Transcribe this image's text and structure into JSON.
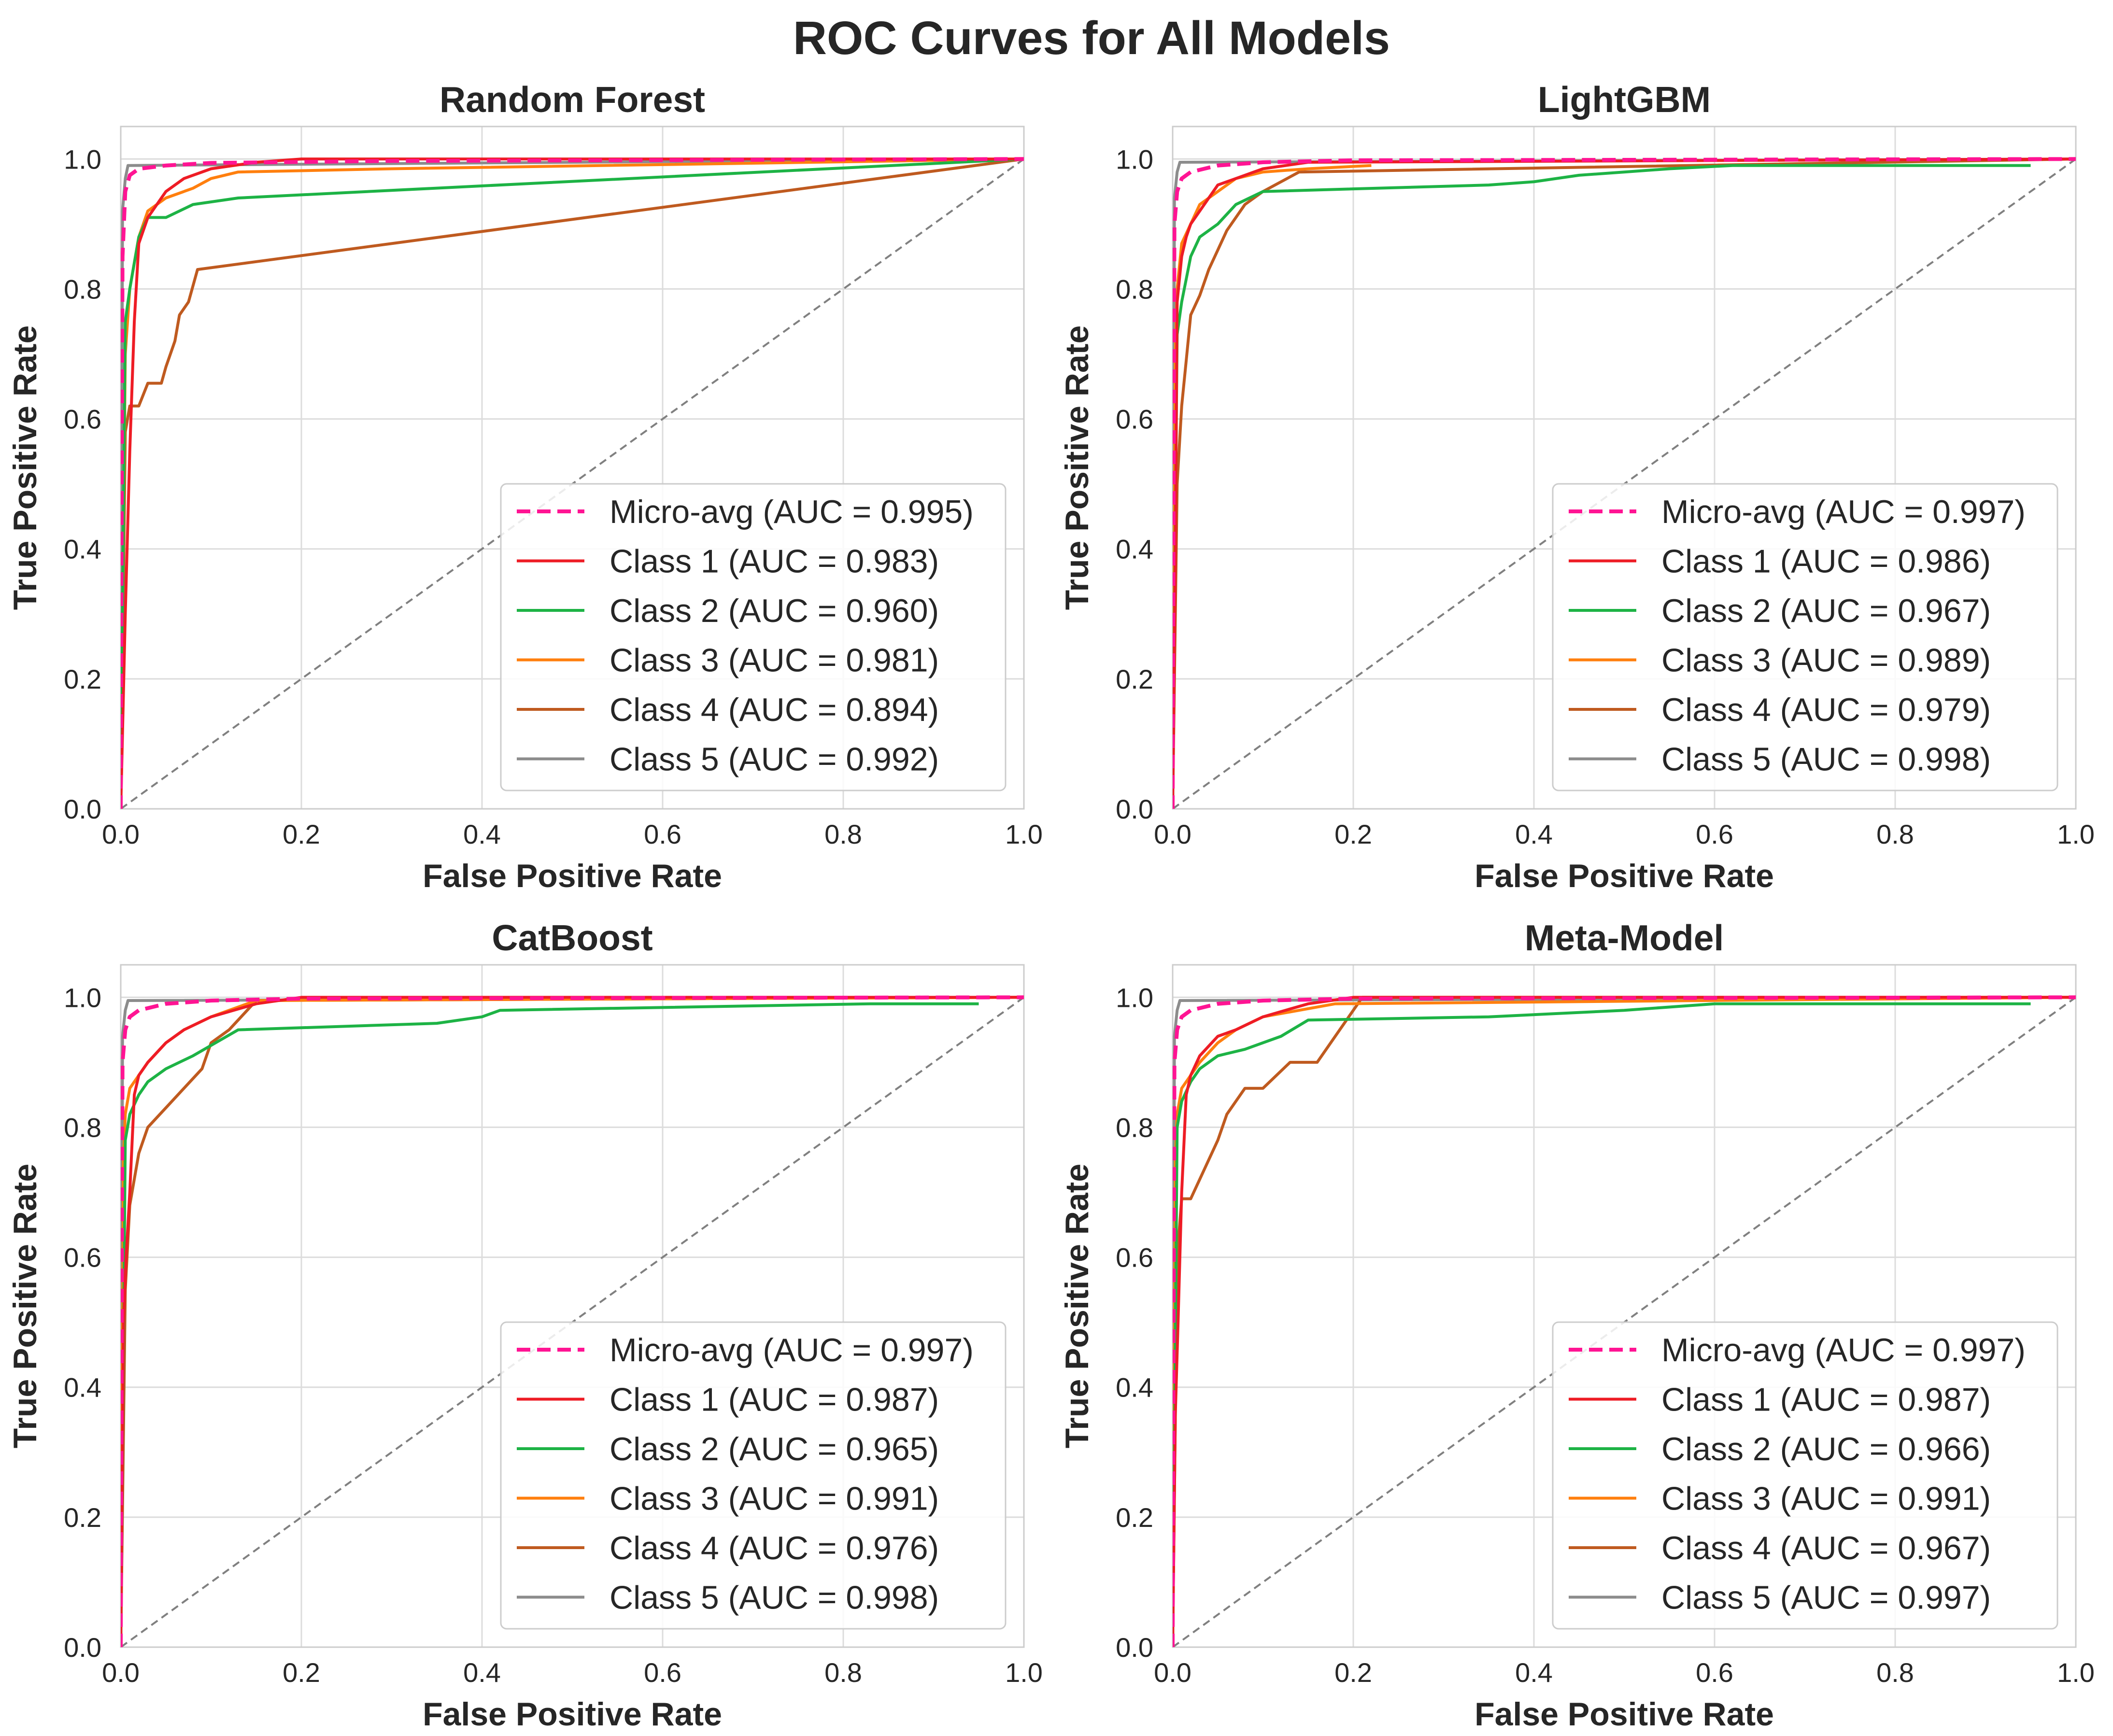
{
  "suptitle": "ROC Curves for All Models",
  "series_styles": [
    {
      "name": "Micro-avg",
      "color": "#ff1493",
      "dash": "dashed"
    },
    {
      "name": "Class 1",
      "color": "#ee1c25",
      "dash": "solid"
    },
    {
      "name": "Class 2",
      "color": "#1db345",
      "dash": "solid"
    },
    {
      "name": "Class 3",
      "color": "#ff7f0e",
      "dash": "solid"
    },
    {
      "name": "Class 4",
      "color": "#bf5a1f",
      "dash": "solid"
    },
    {
      "name": "Class 5",
      "color": "#8c8c8c",
      "dash": "solid"
    }
  ],
  "chart_data": [
    {
      "type": "line",
      "title": "Random Forest",
      "xlabel": "False Positive Rate",
      "ylabel": "True Positive Rate",
      "xlim": [
        0,
        1
      ],
      "ylim": [
        0,
        1.05
      ],
      "xticks": [
        "0.0",
        "0.2",
        "0.4",
        "0.6",
        "0.8",
        "1.0"
      ],
      "yticks": [
        "0.0",
        "0.2",
        "0.4",
        "0.6",
        "0.8",
        "1.0"
      ],
      "grid": true,
      "legend_position": "lower-right",
      "diagonal_reference": true,
      "series": [
        {
          "name": "Micro-avg",
          "label": "Micro-avg (AUC = 0.995)",
          "x": [
            0,
            0.002,
            0.005,
            0.01,
            0.02,
            0.05,
            0.1,
            0.3,
            1.0
          ],
          "y": [
            0,
            0.85,
            0.95,
            0.975,
            0.985,
            0.99,
            0.994,
            0.997,
            1.0
          ]
        },
        {
          "name": "Class 1",
          "label": "Class 1 (AUC = 0.983)",
          "x": [
            0,
            0.005,
            0.01,
            0.015,
            0.02,
            0.03,
            0.05,
            0.07,
            0.1,
            0.15,
            0.2,
            1.0
          ],
          "y": [
            0,
            0.3,
            0.55,
            0.75,
            0.87,
            0.91,
            0.95,
            0.97,
            0.985,
            0.995,
            1.0,
            1.0
          ]
        },
        {
          "name": "Class 2",
          "label": "Class 2 (AUC = 0.960)",
          "x": [
            0,
            0.005,
            0.01,
            0.02,
            0.03,
            0.05,
            0.08,
            0.13,
            1.0
          ],
          "y": [
            0,
            0.75,
            0.8,
            0.88,
            0.91,
            0.91,
            0.93,
            0.94,
            1.0
          ]
        },
        {
          "name": "Class 3",
          "label": "Class 3 (AUC = 0.981)",
          "x": [
            0,
            0.005,
            0.01,
            0.02,
            0.03,
            0.05,
            0.08,
            0.1,
            0.13,
            0.3,
            1.0
          ],
          "y": [
            0,
            0.7,
            0.8,
            0.88,
            0.92,
            0.94,
            0.955,
            0.97,
            0.98,
            0.985,
            1.0
          ]
        },
        {
          "name": "Class 4",
          "label": "Class 4 (AUC = 0.894)",
          "x": [
            0,
            0.005,
            0.01,
            0.02,
            0.03,
            0.045,
            0.05,
            0.06,
            0.065,
            0.075,
            0.085,
            1.0
          ],
          "y": [
            0,
            0.58,
            0.62,
            0.62,
            0.655,
            0.655,
            0.68,
            0.72,
            0.76,
            0.78,
            0.83,
            1.0
          ]
        },
        {
          "name": "Class 5",
          "label": "Class 5 (AUC = 0.992)",
          "x": [
            0,
            0.002,
            0.005,
            0.008,
            1.0
          ],
          "y": [
            0,
            0.92,
            0.97,
            0.99,
            1.0
          ]
        }
      ]
    },
    {
      "type": "line",
      "title": "LightGBM",
      "xlabel": "False Positive Rate",
      "ylabel": "True Positive Rate",
      "xlim": [
        0,
        1
      ],
      "ylim": [
        0,
        1.05
      ],
      "xticks": [
        "0.0",
        "0.2",
        "0.4",
        "0.6",
        "0.8",
        "1.0"
      ],
      "yticks": [
        "0.0",
        "0.2",
        "0.4",
        "0.6",
        "0.8",
        "1.0"
      ],
      "grid": true,
      "legend_position": "lower-right",
      "diagonal_reference": true,
      "series": [
        {
          "name": "Micro-avg",
          "label": "Micro-avg (AUC = 0.997)",
          "x": [
            0,
            0.002,
            0.005,
            0.01,
            0.02,
            0.05,
            0.1,
            0.2,
            1.0
          ],
          "y": [
            0,
            0.9,
            0.95,
            0.97,
            0.98,
            0.99,
            0.995,
            0.998,
            1.0
          ]
        },
        {
          "name": "Class 1",
          "label": "Class 1 (AUC = 0.986)",
          "x": [
            0,
            0.003,
            0.005,
            0.01,
            0.015,
            0.02,
            0.03,
            0.04,
            0.05,
            0.07,
            0.1,
            0.15,
            1.0
          ],
          "y": [
            0,
            0.4,
            0.78,
            0.85,
            0.88,
            0.9,
            0.92,
            0.94,
            0.96,
            0.97,
            0.985,
            0.995,
            1.0
          ]
        },
        {
          "name": "Class 2",
          "label": "Class 2 (AUC = 0.967)",
          "x": [
            0,
            0.005,
            0.01,
            0.02,
            0.03,
            0.05,
            0.07,
            0.1,
            0.35,
            0.4,
            0.45,
            0.5,
            0.55,
            0.62,
            0.95
          ],
          "y": [
            0,
            0.73,
            0.78,
            0.85,
            0.88,
            0.9,
            0.93,
            0.95,
            0.96,
            0.965,
            0.975,
            0.98,
            0.985,
            0.99,
            0.99
          ]
        },
        {
          "name": "Class 3",
          "label": "Class 3 (AUC = 0.989)",
          "x": [
            0,
            0.003,
            0.005,
            0.01,
            0.02,
            0.03,
            0.05,
            0.07,
            0.1,
            0.15,
            0.22
          ],
          "y": [
            0,
            0.7,
            0.8,
            0.87,
            0.9,
            0.93,
            0.95,
            0.97,
            0.98,
            0.985,
            0.99
          ]
        },
        {
          "name": "Class 4",
          "label": "Class 4 (AUC = 0.979)",
          "x": [
            0,
            0.005,
            0.01,
            0.015,
            0.02,
            0.03,
            0.04,
            0.05,
            0.06,
            0.07,
            0.08,
            0.1,
            0.14,
            1.0
          ],
          "y": [
            0,
            0.5,
            0.62,
            0.69,
            0.76,
            0.79,
            0.83,
            0.86,
            0.89,
            0.91,
            0.93,
            0.95,
            0.98,
            1.0
          ]
        },
        {
          "name": "Class 5",
          "label": "Class 5 (AUC = 0.998)",
          "x": [
            0,
            0.002,
            0.005,
            0.008,
            1.0
          ],
          "y": [
            0,
            0.94,
            0.98,
            0.995,
            1.0
          ]
        }
      ]
    },
    {
      "type": "line",
      "title": "CatBoost",
      "xlabel": "False Positive Rate",
      "ylabel": "True Positive Rate",
      "xlim": [
        0,
        1
      ],
      "ylim": [
        0,
        1.05
      ],
      "xticks": [
        "0.0",
        "0.2",
        "0.4",
        "0.6",
        "0.8",
        "1.0"
      ],
      "yticks": [
        "0.0",
        "0.2",
        "0.4",
        "0.6",
        "0.8",
        "1.0"
      ],
      "grid": true,
      "legend_position": "lower-right",
      "diagonal_reference": true,
      "series": [
        {
          "name": "Micro-avg",
          "label": "Micro-avg (AUC = 0.997)",
          "x": [
            0,
            0.002,
            0.005,
            0.01,
            0.02,
            0.05,
            0.1,
            0.2,
            1.0
          ],
          "y": [
            0,
            0.9,
            0.95,
            0.97,
            0.98,
            0.99,
            0.995,
            0.998,
            1.0
          ]
        },
        {
          "name": "Class 1",
          "label": "Class 1 (AUC = 0.987)",
          "x": [
            0,
            0.003,
            0.006,
            0.01,
            0.015,
            0.02,
            0.03,
            0.05,
            0.07,
            0.1,
            0.15,
            0.2,
            1.0
          ],
          "y": [
            0,
            0.5,
            0.6,
            0.7,
            0.85,
            0.88,
            0.9,
            0.93,
            0.95,
            0.97,
            0.99,
            1.0,
            1.0
          ]
        },
        {
          "name": "Class 2",
          "label": "Class 2 (AUC = 0.965)",
          "x": [
            0,
            0.005,
            0.01,
            0.02,
            0.03,
            0.05,
            0.08,
            0.13,
            0.35,
            0.4,
            0.42,
            0.83,
            0.95
          ],
          "y": [
            0,
            0.78,
            0.82,
            0.85,
            0.87,
            0.89,
            0.91,
            0.95,
            0.96,
            0.97,
            0.98,
            0.99,
            0.99
          ]
        },
        {
          "name": "Class 3",
          "label": "Class 3 (AUC = 0.991)",
          "x": [
            0,
            0.003,
            0.005,
            0.01,
            0.02,
            0.03,
            0.05,
            0.07,
            0.1,
            0.15,
            1.0
          ],
          "y": [
            0,
            0.75,
            0.82,
            0.86,
            0.88,
            0.9,
            0.93,
            0.95,
            0.97,
            0.995,
            1.0
          ]
        },
        {
          "name": "Class 4",
          "label": "Class 4 (AUC = 0.976)",
          "x": [
            0,
            0.005,
            0.01,
            0.02,
            0.03,
            0.05,
            0.07,
            0.09,
            0.1,
            0.12,
            0.14,
            0.15,
            1.0
          ],
          "y": [
            0,
            0.55,
            0.68,
            0.76,
            0.8,
            0.83,
            0.86,
            0.89,
            0.93,
            0.95,
            0.98,
            0.995,
            1.0
          ]
        },
        {
          "name": "Class 5",
          "label": "Class 5 (AUC = 0.998)",
          "x": [
            0,
            0.002,
            0.005,
            0.008,
            1.0
          ],
          "y": [
            0,
            0.94,
            0.98,
            0.995,
            1.0
          ]
        }
      ]
    },
    {
      "type": "line",
      "title": "Meta-Model",
      "xlabel": "False Positive Rate",
      "ylabel": "True Positive Rate",
      "xlim": [
        0,
        1
      ],
      "ylim": [
        0,
        1.05
      ],
      "xticks": [
        "0.0",
        "0.2",
        "0.4",
        "0.6",
        "0.8",
        "1.0"
      ],
      "yticks": [
        "0.0",
        "0.2",
        "0.4",
        "0.6",
        "0.8",
        "1.0"
      ],
      "grid": true,
      "legend_position": "lower-right",
      "diagonal_reference": true,
      "series": [
        {
          "name": "Micro-avg",
          "label": "Micro-avg (AUC = 0.997)",
          "x": [
            0,
            0.002,
            0.005,
            0.01,
            0.02,
            0.05,
            0.1,
            0.2,
            1.0
          ],
          "y": [
            0,
            0.9,
            0.95,
            0.97,
            0.98,
            0.99,
            0.995,
            0.998,
            1.0
          ]
        },
        {
          "name": "Class 1",
          "label": "Class 1 (AUC = 0.987)",
          "x": [
            0,
            0.003,
            0.006,
            0.01,
            0.015,
            0.02,
            0.03,
            0.05,
            0.07,
            0.1,
            0.15,
            0.2,
            1.0
          ],
          "y": [
            0,
            0.36,
            0.5,
            0.7,
            0.85,
            0.88,
            0.91,
            0.94,
            0.95,
            0.97,
            0.99,
            1.0,
            1.0
          ]
        },
        {
          "name": "Class 2",
          "label": "Class 2 (AUC = 0.966)",
          "x": [
            0,
            0.005,
            0.01,
            0.02,
            0.03,
            0.05,
            0.08,
            0.12,
            0.15,
            0.35,
            0.5,
            0.6,
            0.95
          ],
          "y": [
            0,
            0.8,
            0.84,
            0.87,
            0.89,
            0.91,
            0.92,
            0.94,
            0.965,
            0.97,
            0.98,
            0.99,
            0.99
          ]
        },
        {
          "name": "Class 3",
          "label": "Class 3 (AUC = 0.991)",
          "x": [
            0,
            0.003,
            0.005,
            0.01,
            0.02,
            0.03,
            0.05,
            0.07,
            0.1,
            0.18,
            1.0
          ],
          "y": [
            0,
            0.75,
            0.82,
            0.86,
            0.88,
            0.9,
            0.93,
            0.95,
            0.97,
            0.99,
            1.0
          ]
        },
        {
          "name": "Class 4",
          "label": "Class 4 (AUC = 0.967)",
          "x": [
            0,
            0.005,
            0.01,
            0.02,
            0.03,
            0.05,
            0.06,
            0.08,
            0.1,
            0.13,
            0.16,
            0.21,
            1.0
          ],
          "y": [
            0,
            0.6,
            0.69,
            0.69,
            0.72,
            0.78,
            0.82,
            0.86,
            0.86,
            0.9,
            0.9,
            1.0,
            1.0
          ]
        },
        {
          "name": "Class 5",
          "label": "Class 5 (AUC = 0.997)",
          "x": [
            0,
            0.002,
            0.005,
            0.008,
            1.0
          ],
          "y": [
            0,
            0.94,
            0.98,
            0.995,
            1.0
          ]
        }
      ]
    }
  ]
}
